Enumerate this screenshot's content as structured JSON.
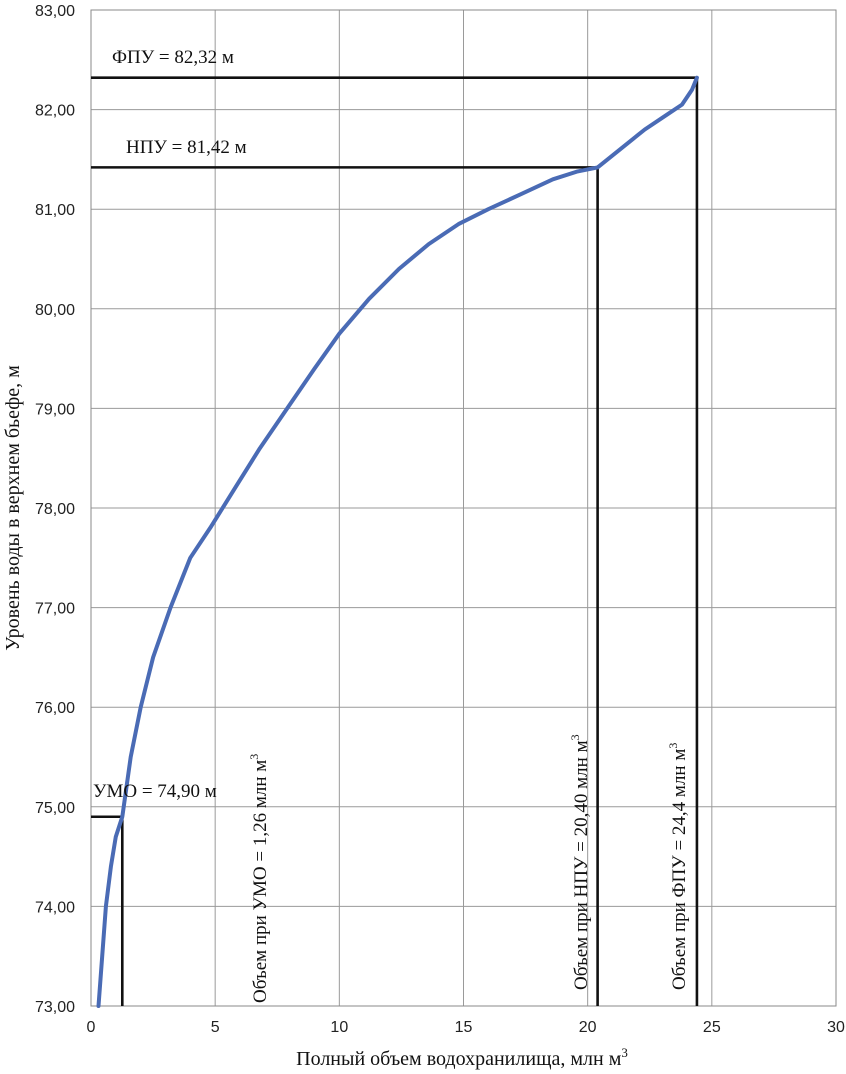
{
  "chart_data": {
    "type": "line",
    "xlabel": "Полный объем водохранилища, млн м",
    "xlabel_sup": "3",
    "ylabel": "Уровень воды в верхнем бьефе, м",
    "xlim": [
      0,
      30
    ],
    "ylim": [
      73,
      83
    ],
    "x_ticks": [
      0,
      5,
      10,
      15,
      20,
      25,
      30
    ],
    "x_tick_labels": [
      "0",
      "5",
      "10",
      "15",
      "20",
      "25",
      "30"
    ],
    "y_ticks": [
      73,
      74,
      75,
      76,
      77,
      78,
      79,
      80,
      81,
      82,
      83
    ],
    "y_tick_labels": [
      "73,00",
      "74,00",
      "75,00",
      "76,00",
      "77,00",
      "78,00",
      "79,00",
      "80,00",
      "81,00",
      "82,00",
      "83,00"
    ],
    "grid": true,
    "line_color": "#4a6bb5",
    "series": [
      {
        "x": [
          0.3,
          0.45,
          0.6,
          0.8,
          1.0,
          1.26,
          1.6,
          2.0,
          2.5,
          3.2,
          4.0,
          4.8,
          5.8,
          6.8,
          7.9,
          9.0,
          10.0,
          11.2,
          12.4,
          13.6,
          14.8,
          16.0,
          17.3,
          18.6,
          19.6,
          20.4,
          21.3,
          22.3,
          23.2,
          23.8,
          24.2,
          24.4
        ],
        "y": [
          73.0,
          73.5,
          74.0,
          74.4,
          74.7,
          74.9,
          75.5,
          76.0,
          76.5,
          77.0,
          77.5,
          77.8,
          78.2,
          78.6,
          79.0,
          79.4,
          79.75,
          80.1,
          80.4,
          80.65,
          80.85,
          81.0,
          81.15,
          81.3,
          81.38,
          81.42,
          81.6,
          81.8,
          81.95,
          82.05,
          82.2,
          82.32
        ]
      }
    ],
    "reference_levels": [
      {
        "name": "ФПУ",
        "level": 82.32,
        "volume": 24.4,
        "level_label": "ФПУ = 82,32 м",
        "volume_label": "Объем при ФПУ = 24,4  млн м",
        "volume_label_sup": "3"
      },
      {
        "name": "НПУ",
        "level": 81.42,
        "volume": 20.4,
        "level_label": "НПУ = 81,42 м",
        "volume_label": "Объем при НПУ = 20,40 млн м",
        "volume_label_sup": "3"
      },
      {
        "name": "УМО",
        "level": 74.9,
        "volume": 1.26,
        "level_label": "УМО = 74,90 м",
        "volume_label": "Объем при УМО = 1,26 млн м",
        "volume_label_sup": "3"
      }
    ]
  }
}
